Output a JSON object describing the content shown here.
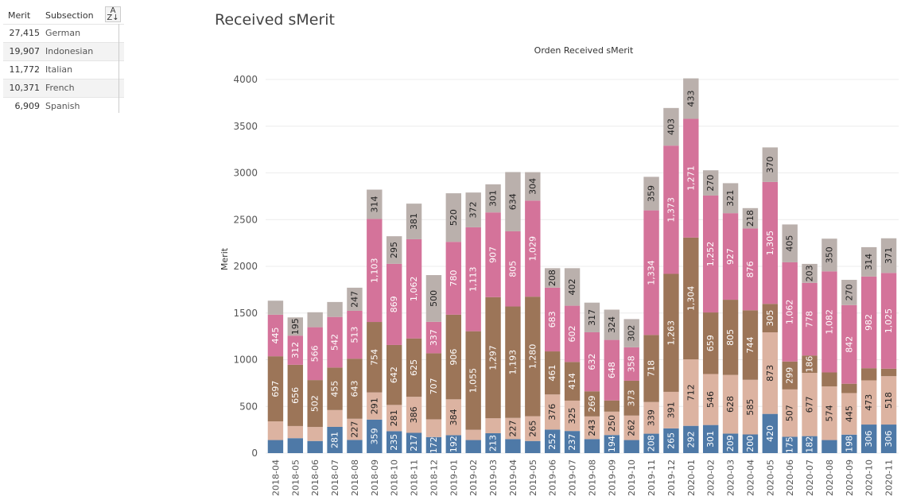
{
  "title": "Received sMerit",
  "mini_table": {
    "col_merit": "Merit",
    "col_subsection": "Subsection",
    "sort_icon": "sort-az-icon",
    "rows": [
      {
        "merit": "27,415",
        "subsection": "German"
      },
      {
        "merit": "19,907",
        "subsection": "Indonesian"
      },
      {
        "merit": "11,772",
        "subsection": "Italian"
      },
      {
        "merit": "10,371",
        "subsection": "French"
      },
      {
        "merit": "6,909",
        "subsection": "Spanish"
      }
    ]
  },
  "chart_data": {
    "type": "bar",
    "stacked": true,
    "title": "Orden Received sMerit",
    "xlabel": "",
    "ylabel": "Merit",
    "ylim": [
      0,
      4000
    ],
    "yticks": [
      0,
      500,
      1000,
      1500,
      2000,
      2500,
      3000,
      3500,
      4000
    ],
    "grid": true,
    "colors": {
      "s1": "#4e79a7",
      "s2": "#dcb3a1",
      "s3": "#9c7558",
      "s4": "#d4739a",
      "s5": "#bab0ac"
    },
    "categories": [
      "2018-04",
      "2018-05",
      "2018-06",
      "2018-07",
      "2018-08",
      "2018-09",
      "2018-10",
      "2018-11",
      "2018-12",
      "2019-01",
      "2019-02",
      "2019-03",
      "2019-04",
      "2019-05",
      "2019-06",
      "2019-07",
      "2019-08",
      "2019-09",
      "2019-10",
      "2019-11",
      "2019-12",
      "2020-01",
      "2020-02",
      "2020-03",
      "2020-04",
      "2020-05",
      "2020-06",
      "2020-07",
      "2020-08",
      "2020-09",
      "2020-10",
      "2020-11"
    ],
    "series": [
      {
        "values": [
          140,
          160,
          130,
          281,
          141,
          359,
          235,
          217,
          172,
          192,
          140,
          213,
          150,
          130,
          252,
          237,
          150,
          194,
          140,
          208,
          265,
          292,
          301,
          209,
          200,
          420,
          175,
          182,
          140,
          198,
          306,
          306
        ],
        "labels": [
          "",
          "",
          "",
          "281",
          "",
          "359",
          "235",
          "217",
          "172",
          "192",
          "",
          "213",
          "",
          "",
          "252",
          "237",
          "",
          "194",
          "",
          "208",
          "265",
          "292",
          "301",
          "209",
          "200",
          "420",
          "175",
          "182",
          "",
          "198",
          "306",
          "306"
        ]
      },
      {
        "values": [
          200,
          130,
          150,
          180,
          227,
          291,
          281,
          386,
          190,
          384,
          110,
          160,
          227,
          265,
          376,
          325,
          243,
          250,
          262,
          339,
          391,
          712,
          546,
          628,
          585,
          873,
          507,
          677,
          574,
          445,
          473,
          518
        ],
        "labels": [
          "",
          "",
          "",
          "",
          "227",
          "291",
          "281",
          "386",
          "",
          "384",
          "",
          "",
          "227",
          "265",
          "376",
          "325",
          "243",
          "250",
          "262",
          "339",
          "391",
          "712",
          "546",
          "628",
          "585",
          "873",
          "507",
          "677",
          "574",
          "445",
          "473",
          "518"
        ]
      },
      {
        "values": [
          697,
          656,
          502,
          455,
          643,
          754,
          642,
          625,
          707,
          906,
          1055,
          1297,
          1193,
          1280,
          461,
          414,
          269,
          120,
          373,
          718,
          1263,
          1304,
          659,
          805,
          744,
          305,
          299,
          186,
          150,
          100,
          130,
          80
        ],
        "labels": [
          "697",
          "656",
          "502",
          "455",
          "643",
          "754",
          "642",
          "625",
          "707",
          "906",
          "1,055",
          "1,297",
          "1,193",
          "1,280",
          "461",
          "414",
          "269",
          "",
          "373",
          "718",
          "1,263",
          "1,304",
          "659",
          "805",
          "744",
          "305",
          "299",
          "186",
          "",
          "",
          "",
          ""
        ]
      },
      {
        "values": [
          445,
          312,
          566,
          542,
          513,
          1103,
          869,
          1062,
          337,
          780,
          1113,
          907,
          805,
          1029,
          683,
          602,
          632,
          648,
          358,
          1334,
          1373,
          1271,
          1252,
          927,
          876,
          1305,
          1062,
          778,
          1082,
          842,
          982,
          1025
        ],
        "labels": [
          "445",
          "312",
          "566",
          "542",
          "513",
          "1,103",
          "869",
          "1,062",
          "337",
          "780",
          "1,113",
          "907",
          "805",
          "1,029",
          "683",
          "602",
          "632",
          "648",
          "358",
          "1,334",
          "1,373",
          "1,271",
          "1,252",
          "927",
          "876",
          "1,305",
          "1,062",
          "778",
          "1,082",
          "842",
          "982",
          "1,025"
        ]
      },
      {
        "values": [
          150,
          195,
          160,
          160,
          247,
          314,
          295,
          381,
          500,
          520,
          372,
          301,
          634,
          304,
          208,
          402,
          317,
          324,
          302,
          359,
          403,
          433,
          270,
          321,
          218,
          370,
          405,
          203,
          350,
          270,
          314,
          371
        ],
        "labels": [
          "",
          "195",
          "",
          "",
          "247",
          "314",
          "295",
          "381",
          "500",
          "520",
          "372",
          "301",
          "634",
          "304",
          "208",
          "402",
          "317",
          "324",
          "302",
          "359",
          "403",
          "433",
          "270",
          "321",
          "218",
          "370",
          "405",
          "203",
          "350",
          "270",
          "314",
          "371"
        ]
      }
    ]
  }
}
